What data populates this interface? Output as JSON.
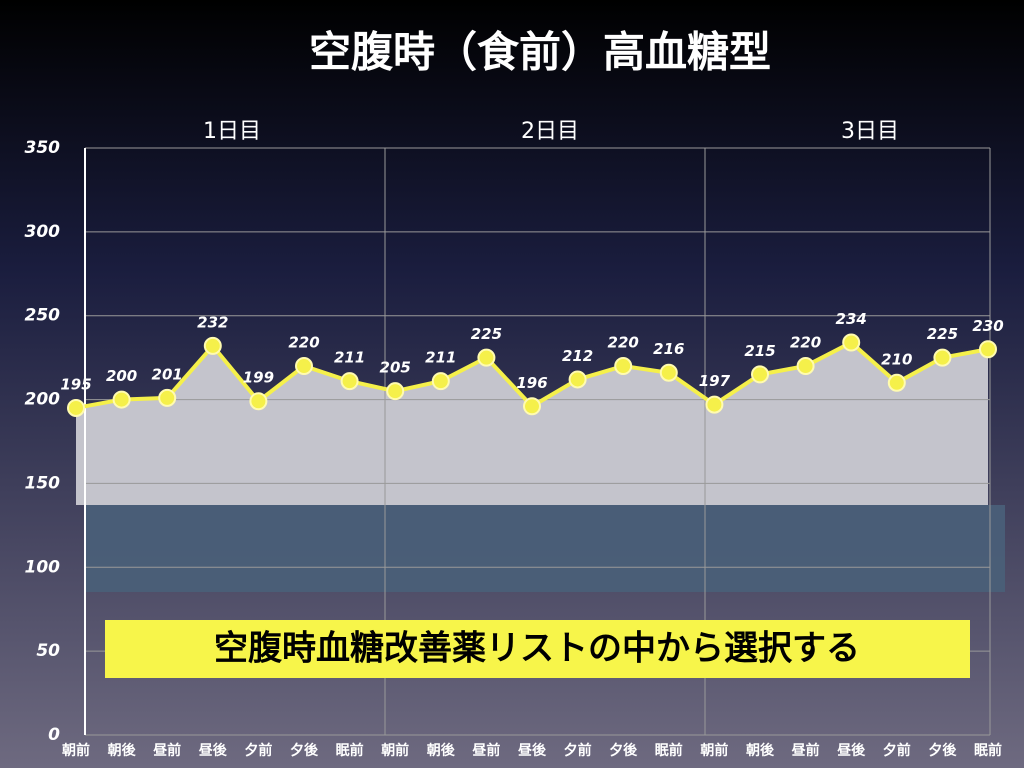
{
  "chart_data": {
    "type": "line",
    "title": "空腹時（食前）高血糖型",
    "day_labels": [
      "1日目",
      "2日目",
      "3日目"
    ],
    "annotation": "空腹時血糖改善薬リストの中から選択する",
    "categories": [
      "朝前",
      "朝後",
      "昼前",
      "昼後",
      "夕前",
      "夕後",
      "眠前",
      "朝前",
      "朝後",
      "昼前",
      "昼後",
      "夕前",
      "夕後",
      "眠前",
      "朝前",
      "朝後",
      "昼前",
      "昼後",
      "夕前",
      "夕後",
      "眠前"
    ],
    "values": [
      195,
      200,
      201,
      232,
      199,
      220,
      211,
      205,
      211,
      225,
      196,
      212,
      220,
      216,
      197,
      215,
      220,
      234,
      210,
      225,
      230
    ],
    "color": "#f5f04a",
    "ylim": [
      0,
      350
    ],
    "yticks": [
      0,
      50,
      100,
      150,
      200,
      250,
      300,
      350
    ],
    "grid": true
  }
}
